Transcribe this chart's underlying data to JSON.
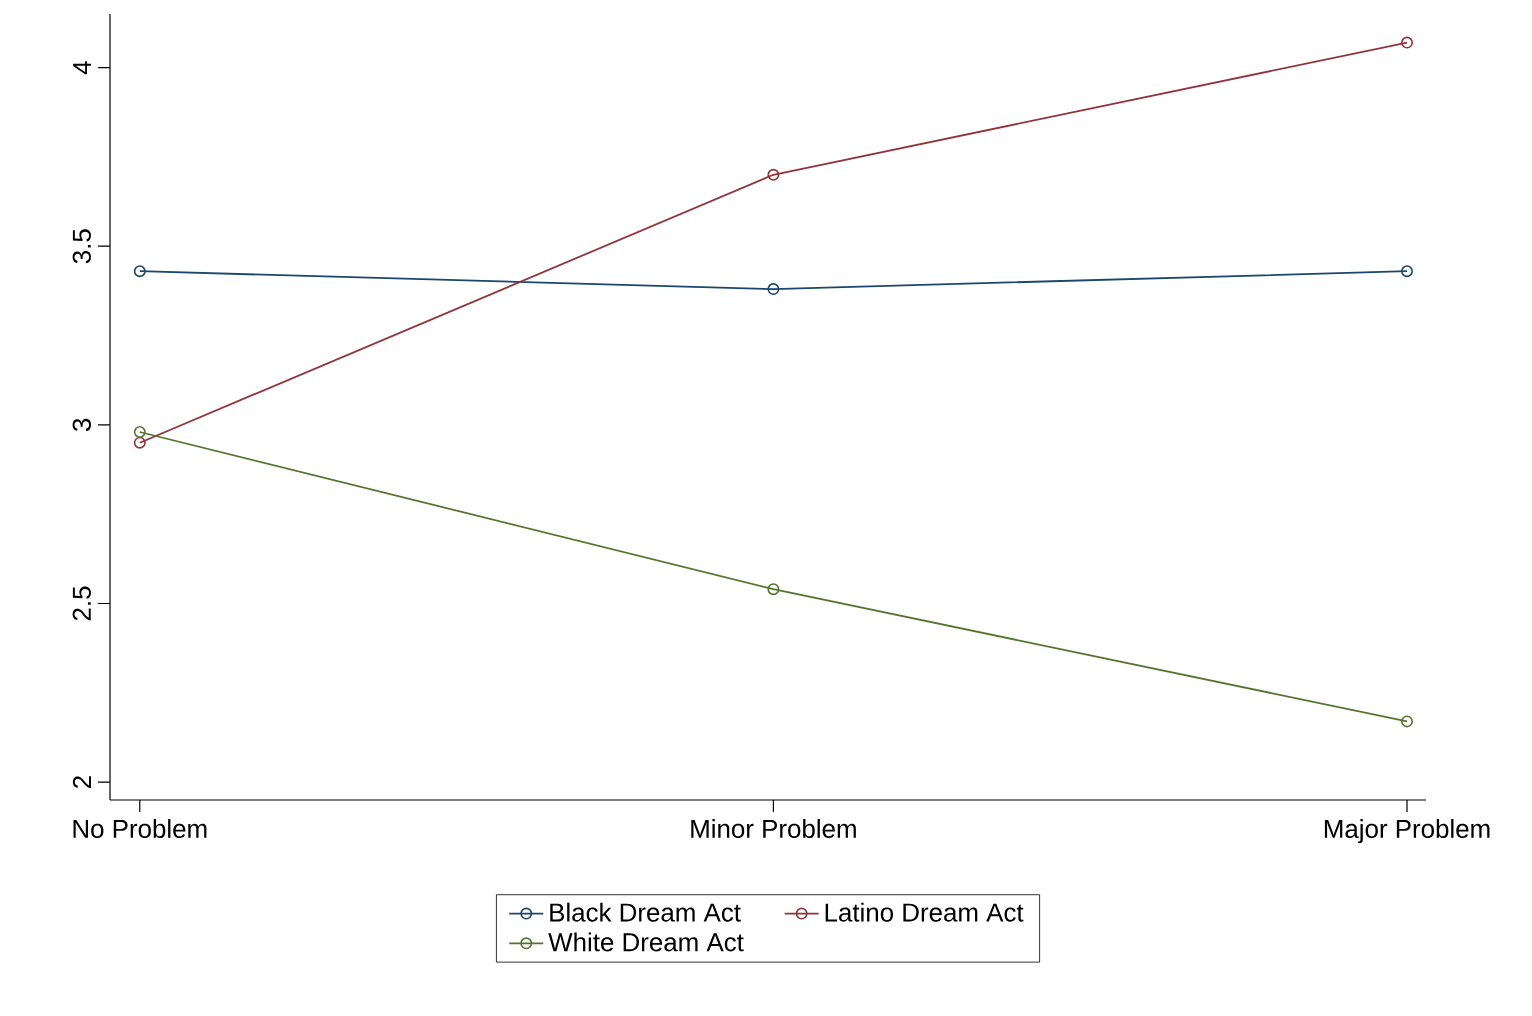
{
  "chart_data": {
    "type": "line",
    "categories": [
      "No Problem",
      "Minor Problem",
      "Major Problem"
    ],
    "series": [
      {
        "name": "Black Dream Act",
        "color": "#1a476f",
        "values": [
          3.43,
          3.38,
          3.43
        ]
      },
      {
        "name": "Latino Dream Act",
        "color": "#90353b",
        "values": [
          2.95,
          3.7,
          4.07
        ]
      },
      {
        "name": "White Dream Act",
        "color": "#55752f",
        "values": [
          2.98,
          2.54,
          2.17
        ]
      }
    ],
    "ylim": [
      1.95,
      4.15
    ],
    "yticks": [
      2,
      2.5,
      3,
      3.5,
      4
    ],
    "marker": "circle",
    "legend": "bottom",
    "grid": false
  }
}
